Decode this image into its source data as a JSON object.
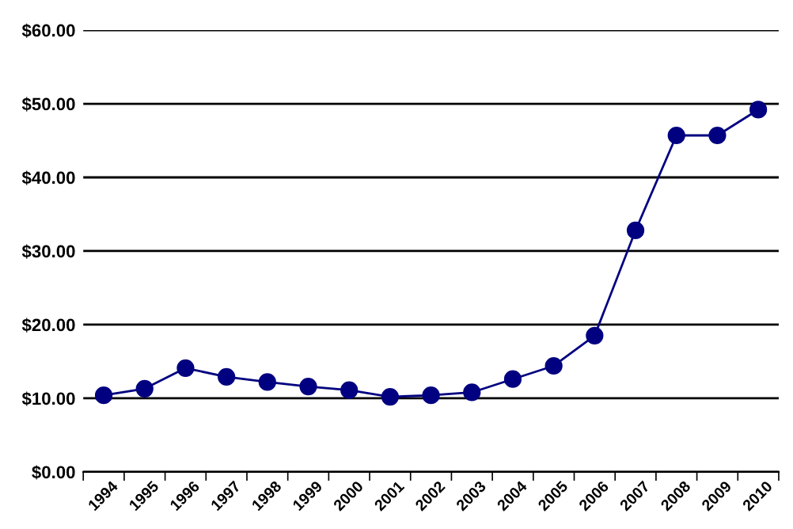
{
  "chart_data": {
    "type": "line",
    "categories": [
      "1994",
      "1995",
      "1996",
      "1997",
      "1998",
      "1999",
      "2000",
      "2001",
      "2002",
      "2003",
      "2004",
      "2005",
      "2006",
      "2007",
      "2008",
      "2009",
      "2010"
    ],
    "series": [
      {
        "color": "#000080",
        "values": [
          10.4,
          11.3,
          14.1,
          12.9,
          12.2,
          11.6,
          11.1,
          10.2,
          10.4,
          10.8,
          12.6,
          14.4,
          18.5,
          32.8,
          45.7,
          45.7,
          49.2
        ]
      }
    ],
    "ylim": [
      0,
      60
    ],
    "yticks": [
      {
        "value": 0,
        "label": "$0.00"
      },
      {
        "value": 10,
        "label": "$10.00"
      },
      {
        "value": 20,
        "label": "$20.00"
      },
      {
        "value": 30,
        "label": "$30.00"
      },
      {
        "value": 40,
        "label": "$40.00"
      },
      {
        "value": 50,
        "label": "$50.00"
      },
      {
        "value": 60,
        "label": "$60.00"
      }
    ],
    "grid": "y",
    "marker": "circle",
    "line_style": "solid"
  }
}
